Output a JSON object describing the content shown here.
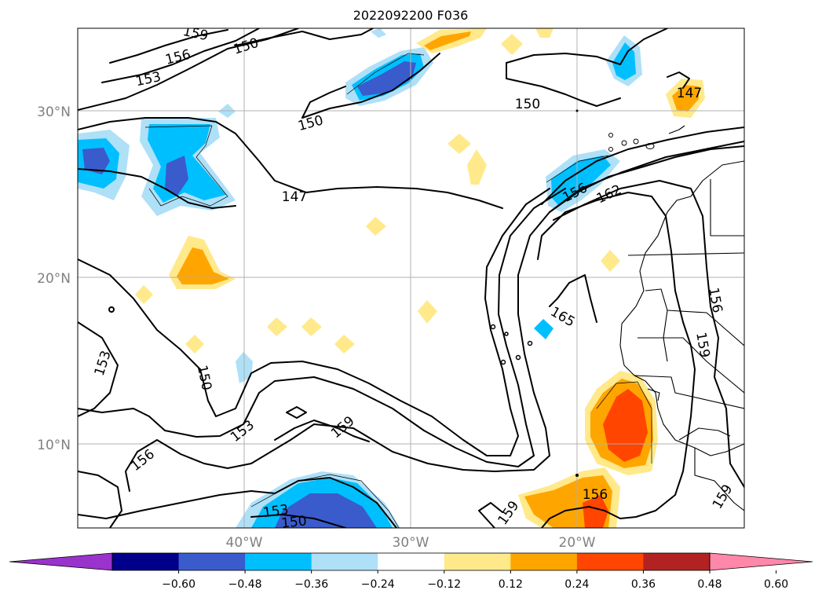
{
  "map": {
    "title": "2022092200 F036",
    "lat_labels": [
      "30°N",
      "20°N",
      "10°N"
    ],
    "lon_labels": [
      "40°W",
      "30°W",
      "20°W"
    ]
  },
  "colorbar": {
    "ticks": [
      "−0.60",
      "−0.48",
      "−0.36",
      "−0.24",
      "−0.12",
      "0.12",
      "0.24",
      "0.36",
      "0.48",
      "0.60"
    ],
    "colors": [
      "#9933cc",
      "#00008b",
      "#3a5bcc",
      "#00bfff",
      "#aee0f8",
      "#ffffff",
      "#ffe98a",
      "#ffa500",
      "#ff4500",
      "#b22222",
      "#ff88aa"
    ]
  },
  "contour_labels": [
    "159",
    "156",
    "150",
    "153",
    "150",
    "147",
    "150",
    "147",
    "156",
    "162",
    "165",
    "156",
    "159",
    "153",
    "150",
    "153",
    "159",
    "156",
    "153",
    "150",
    "159",
    "156",
    "159"
  ],
  "colors": {
    "orange": "#ffa500",
    "red_orange": "#ff4500",
    "yellow": "#ffe98a",
    "cyan": "#00bfff",
    "light_blue": "#aee0f8",
    "blue": "#3a5bcc"
  }
}
